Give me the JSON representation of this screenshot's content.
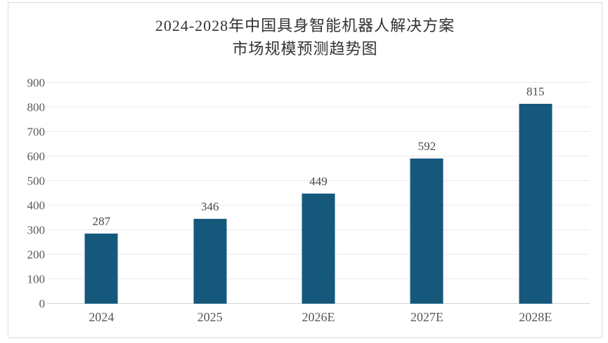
{
  "title": {
    "line1": "2024-2028年中国具身智能机器人解决方案",
    "line2": "市场规模预测趋势图"
  },
  "chart_data": {
    "type": "bar",
    "title": "2024-2028年中国具身智能机器人解决方案市场规模预测趋势图",
    "categories": [
      "2024",
      "2025",
      "2026E",
      "2027E",
      "2028E"
    ],
    "values": [
      287,
      346,
      449,
      592,
      815
    ],
    "data_labels": [
      "287",
      "346",
      "449",
      "592",
      "815"
    ],
    "xlabel": "",
    "ylabel": "",
    "ylim": [
      0,
      900
    ],
    "yticks": [
      0,
      100,
      200,
      300,
      400,
      500,
      600,
      700,
      800,
      900
    ],
    "grid": true,
    "legend": "none"
  },
  "colors": {
    "bar": "#15587c",
    "grid_line": "#ebebeb",
    "axis_line": "#d2d2d2",
    "tick_label": "#595959",
    "data_label": "#4a4a4a",
    "title_text": "#333333",
    "frame_border": "#dcdcdc",
    "background": "#ffffff"
  }
}
